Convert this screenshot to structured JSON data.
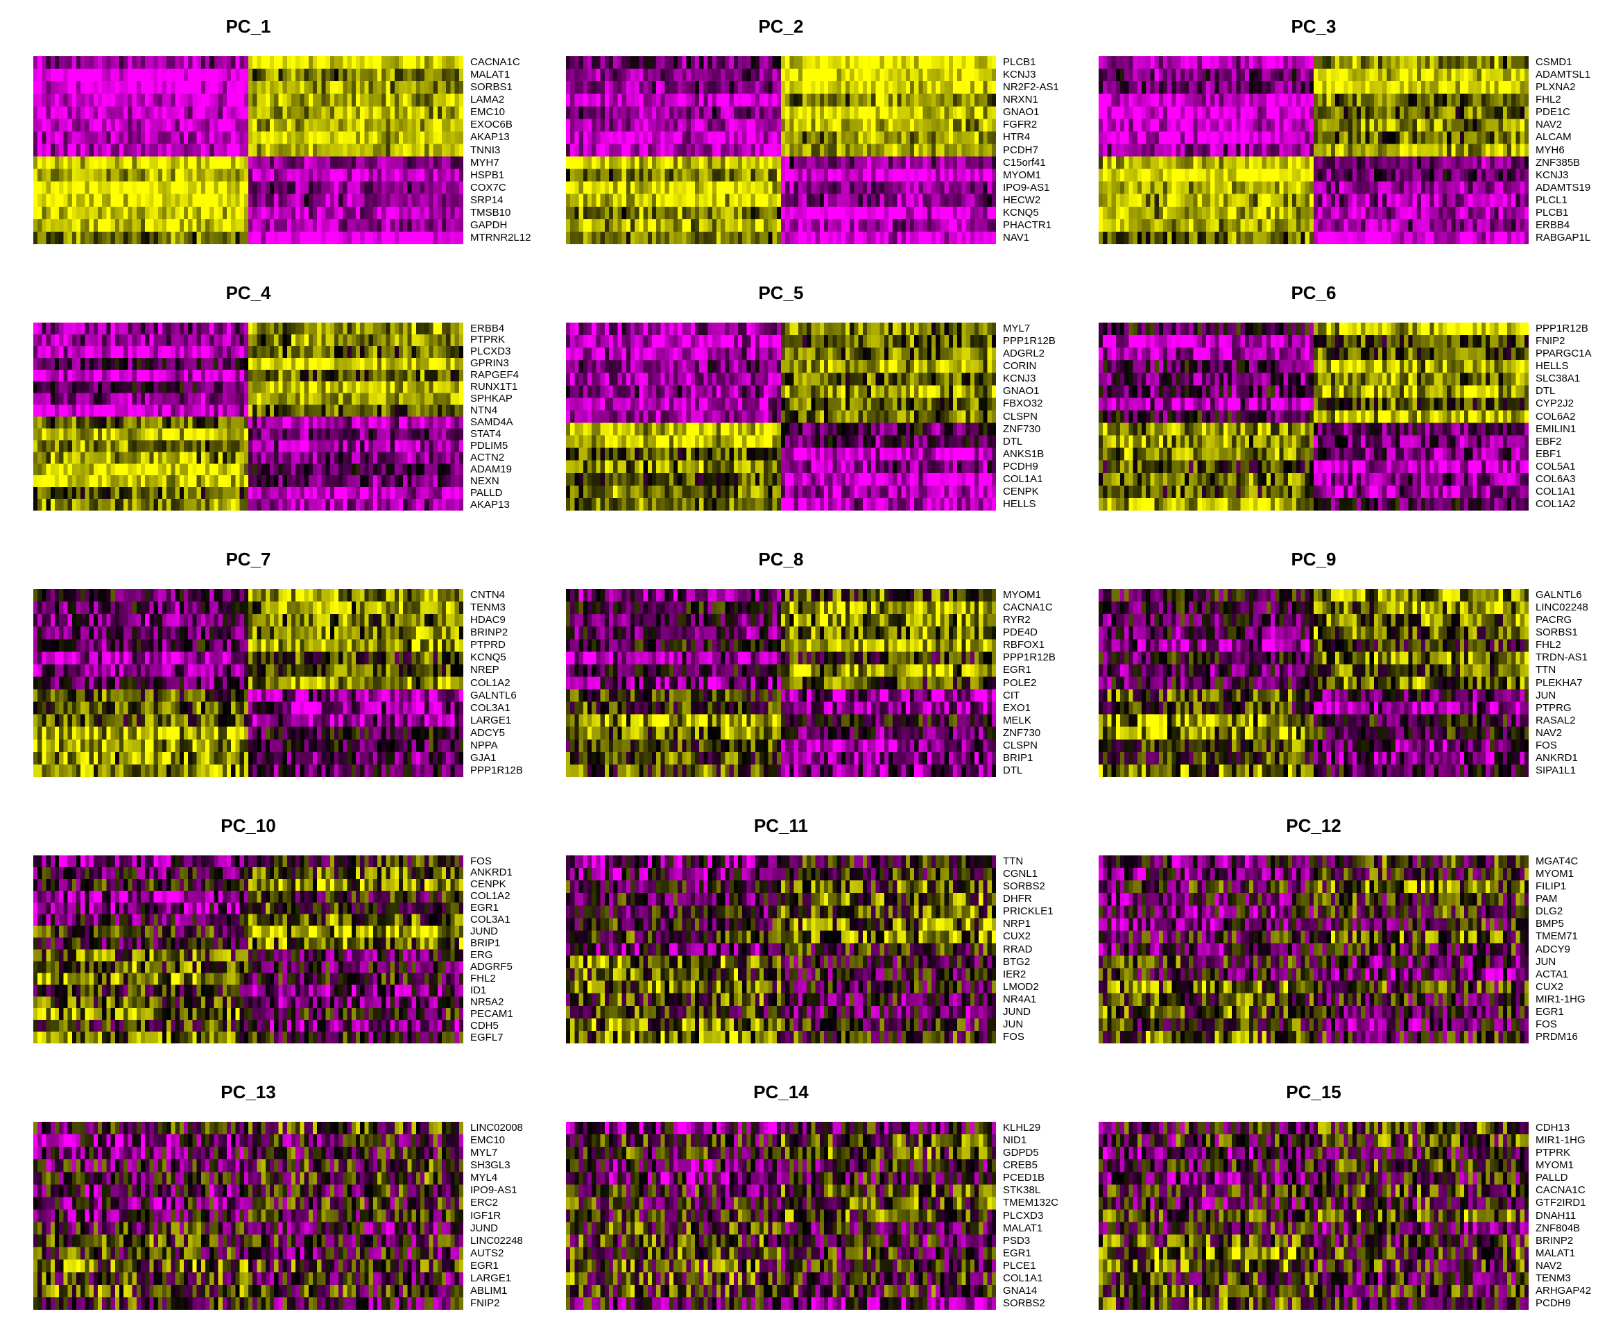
{
  "chart_data": [
    {
      "type": "heatmap",
      "title": "PC_1",
      "genes": [
        "CACNA1C",
        "MALAT1",
        "SORBS1",
        "LAMA2",
        "EMC10",
        "EXOC6B",
        "AKAP13",
        "TNNI3",
        "MYH7",
        "HSPB1",
        "COX7C",
        "SRP14",
        "TMSB10",
        "GAPDH",
        "MTRNR2L12"
      ]
    },
    {
      "type": "heatmap",
      "title": "PC_2",
      "genes": [
        "PLCB1",
        "KCNJ3",
        "NR2F2-AS1",
        "NRXN1",
        "GNAO1",
        "FGFR2",
        "HTR4",
        "PCDH7",
        "C15orf41",
        "MYOM1",
        "IPO9-AS1",
        "HECW2",
        "KCNQ5",
        "PHACTR1",
        "NAV1"
      ]
    },
    {
      "type": "heatmap",
      "title": "PC_3",
      "genes": [
        "CSMD1",
        "ADAMTSL1",
        "PLXNA2",
        "FHL2",
        "PDE1C",
        "NAV2",
        "ALCAM",
        "MYH6",
        "ZNF385B",
        "KCNJ3",
        "ADAMTS19",
        "PLCL1",
        "PLCB1",
        "ERBB4",
        "RABGAP1L"
      ]
    },
    {
      "type": "heatmap",
      "title": "PC_4",
      "genes": [
        "ERBB4",
        "PTPRK",
        "PLCXD3",
        "GPRIN3",
        "RAPGEF4",
        "RUNX1T1",
        "SPHKAP",
        "NTN4",
        "SAMD4A",
        "STAT4",
        "PDLIM5",
        "ACTN2",
        "ADAM19",
        "NEXN",
        "PALLD",
        "AKAP13"
      ]
    },
    {
      "type": "heatmap",
      "title": "PC_5",
      "genes": [
        "MYL7",
        "PPP1R12B",
        "ADGRL2",
        "CORIN",
        "KCNJ3",
        "GNAO1",
        "FBXO32",
        "CLSPN",
        "ZNF730",
        "DTL",
        "ANKS1B",
        "PCDH9",
        "COL1A1",
        "CENPK",
        "HELLS"
      ]
    },
    {
      "type": "heatmap",
      "title": "PC_6",
      "genes": [
        "PPP1R12B",
        "FNIP2",
        "PPARGC1A",
        "HELLS",
        "SLC38A1",
        "DTL",
        "CYP2J2",
        "COL6A2",
        "EMILIN1",
        "EBF2",
        "EBF1",
        "COL5A1",
        "COL6A3",
        "COL1A1",
        "COL1A2"
      ]
    },
    {
      "type": "heatmap",
      "title": "PC_7",
      "genes": [
        "CNTN4",
        "TENM3",
        "HDAC9",
        "BRINP2",
        "PTPRD",
        "KCNQ5",
        "NREP",
        "COL1A2",
        "GALNTL6",
        "COL3A1",
        "LARGE1",
        "ADCY5",
        "NPPA",
        "GJA1",
        "PPP1R12B"
      ]
    },
    {
      "type": "heatmap",
      "title": "PC_8",
      "genes": [
        "MYOM1",
        "CACNA1C",
        "RYR2",
        "PDE4D",
        "RBFOX1",
        "PPP1R12B",
        "EGR1",
        "POLE2",
        "CIT",
        "EXO1",
        "MELK",
        "ZNF730",
        "CLSPN",
        "BRIP1",
        "DTL"
      ]
    },
    {
      "type": "heatmap",
      "title": "PC_9",
      "genes": [
        "GALNTL6",
        "LINC02248",
        "PACRG",
        "SORBS1",
        "FHL2",
        "TRDN-AS1",
        "TTN",
        "PLEKHA7",
        "JUN",
        "PTPRG",
        "RASAL2",
        "NAV2",
        "FOS",
        "ANKRD1",
        "SIPA1L1"
      ]
    },
    {
      "type": "heatmap",
      "title": "PC_10",
      "genes": [
        "FOS",
        "ANKRD1",
        "CENPK",
        "COL1A2",
        "EGR1",
        "COL3A1",
        "JUND",
        "BRIP1",
        "ERG",
        "ADGRF5",
        "FHL2",
        "ID1",
        "NR5A2",
        "PECAM1",
        "CDH5",
        "EGFL7"
      ]
    },
    {
      "type": "heatmap",
      "title": "PC_11",
      "genes": [
        "TTN",
        "CGNL1",
        "SORBS2",
        "DHFR",
        "PRICKLE1",
        "NRP1",
        "CUX2",
        "RRAD",
        "BTG2",
        "IER2",
        "LMOD2",
        "NR4A1",
        "JUND",
        "JUN",
        "FOS"
      ]
    },
    {
      "type": "heatmap",
      "title": "PC_12",
      "genes": [
        "MGAT4C",
        "MYOM1",
        "FILIP1",
        "PAM",
        "DLG2",
        "BMP5",
        "TMEM71",
        "ADCY9",
        "JUN",
        "ACTA1",
        "CUX2",
        "MIR1-1HG",
        "EGR1",
        "FOS",
        "PRDM16"
      ]
    },
    {
      "type": "heatmap",
      "title": "PC_13",
      "genes": [
        "LINC02008",
        "EMC10",
        "MYL7",
        "SH3GL3",
        "MYL4",
        "IPO9-AS1",
        "ERC2",
        "IGF1R",
        "JUND",
        "LINC02248",
        "AUTS2",
        "EGR1",
        "LARGE1",
        "ABLIM1",
        "FNIP2"
      ]
    },
    {
      "type": "heatmap",
      "title": "PC_14",
      "genes": [
        "KLHL29",
        "NID1",
        "GDPD5",
        "CREB5",
        "PCED1B",
        "STK38L",
        "TMEM132C",
        "PLCXD3",
        "MALAT1",
        "PSD3",
        "EGR1",
        "PLCE1",
        "COL1A1",
        "GNA14",
        "SORBS2"
      ]
    },
    {
      "type": "heatmap",
      "title": "PC_15",
      "genes": [
        "CDH13",
        "MIR1-1HG",
        "PTPRK",
        "MYOM1",
        "PALLD",
        "CACNA1C",
        "GTF2IRD1",
        "DNAH11",
        "ZNF804B",
        "BRINP2",
        "MALAT1",
        "NAV2",
        "TENM3",
        "ARHGAP42",
        "PCDH9"
      ]
    }
  ],
  "colors": {
    "low": "#ff00ff",
    "mid": "#000000",
    "high": "#ffff00"
  }
}
